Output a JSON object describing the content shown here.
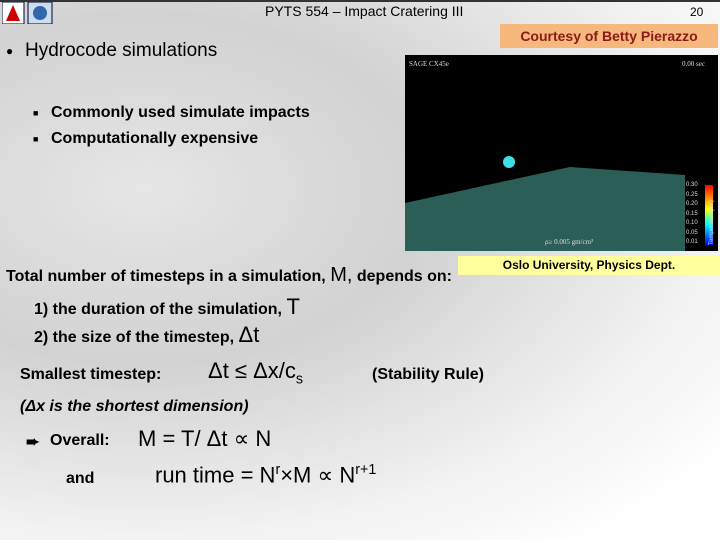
{
  "header": {
    "title": "PYTS 554 – Impact Cratering III",
    "page_number": "20"
  },
  "courtesy": "Courtesy of Betty Pierazzo",
  "bullet": {
    "text": "Hydrocode simulations",
    "sub_bullets": [
      "Commonly used simulate impacts",
      "Computationally expensive"
    ]
  },
  "simulation": {
    "label": "SAGE CX45e",
    "time": "0.00 sec",
    "density": "ρ≥ 0.005 gm/cm³",
    "colorbar_title": "Temperature(eV)",
    "colorbar_ticks": [
      "0.30",
      "0.25",
      "0.20",
      "0.15",
      "0.10",
      "0.05",
      "0.01"
    ],
    "credit": "Oslo University, Physics Dept."
  },
  "body": {
    "line1_a": "Total number of timesteps in a simulation,",
    "line1_b": "M,",
    "line1_c": "depends on:",
    "item1_a": "1) the duration of the simulation,",
    "item1_b": "T",
    "item2_a": "2)  the size of the timestep,",
    "item2_b": "Δt",
    "smallest_label": "Smallest timestep:",
    "smallest_formula": "Δt ≤ Δx/c",
    "smallest_sub": "s",
    "stability": "(Stability Rule)",
    "note": "(Δx is the shortest dimension)",
    "overall_label": "Overall:",
    "overall_formula": "M = T/ Δt ∝ N",
    "and_label": "and",
    "runtime_a": "run time = N",
    "runtime_sup1": "r",
    "runtime_b": "×M ∝ N",
    "runtime_sup2": "r+1"
  }
}
